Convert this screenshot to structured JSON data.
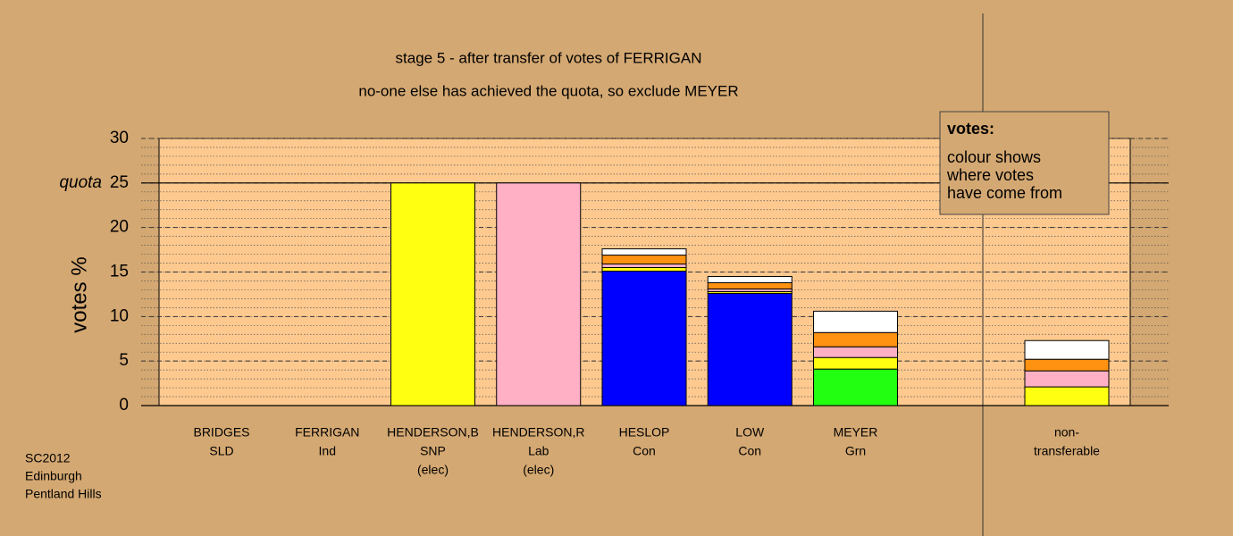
{
  "chart_data": {
    "type": "stacked-bar",
    "title": "stage 5 - after transfer of votes of FERRIGAN",
    "subtitle": "no-one else has achieved the quota, so exclude MEYER",
    "y_label": "votes %",
    "quota_label": "quota",
    "quota": 25,
    "categories": [
      [
        "BRIDGES",
        "SLD"
      ],
      [
        "FERRIGAN",
        "Ind"
      ],
      [
        "HENDERSON,B",
        "SNP",
        "(elec)"
      ],
      [
        "HENDERSON,R",
        "Lab",
        "(elec)"
      ],
      [
        "HESLOP",
        "Con"
      ],
      [
        "LOW",
        "Con"
      ],
      [
        "MEYER",
        "Grn"
      ],
      null,
      [
        "non-",
        "transferable"
      ]
    ],
    "series": [
      {
        "color": "#0000ff",
        "values": [
          0,
          0,
          0,
          0,
          15.1,
          12.6,
          0,
          0,
          0
        ]
      },
      {
        "color": "#22ff11",
        "values": [
          0,
          0,
          0,
          0,
          0,
          0,
          4.1,
          0,
          0
        ]
      },
      {
        "color": "#ffff11",
        "values": [
          0,
          0,
          25,
          0,
          0.4,
          0.2,
          1.3,
          0,
          2.1
        ]
      },
      {
        "color": "#ffb0c4",
        "values": [
          0,
          0,
          0,
          25,
          0.4,
          0.3,
          1.2,
          0,
          1.8
        ]
      },
      {
        "color": "#ff9211",
        "values": [
          0,
          0,
          0,
          0,
          1.0,
          0.7,
          1.6,
          0,
          1.3
        ]
      },
      {
        "color": "#ffffff",
        "values": [
          0,
          0,
          0,
          0,
          0.7,
          0.7,
          2.4,
          0,
          2.1
        ]
      }
    ],
    "ylim": [
      0,
      30
    ],
    "yticks": [
      0,
      5,
      10,
      15,
      20,
      25,
      30
    ],
    "minor_ystep": 1,
    "grid": true,
    "legend_title": "votes:",
    "legend_lines": [
      "colour shows",
      "where votes",
      "have come from"
    ],
    "footer": [
      "SC2012",
      "Edinburgh",
      "Pentland Hills"
    ]
  }
}
